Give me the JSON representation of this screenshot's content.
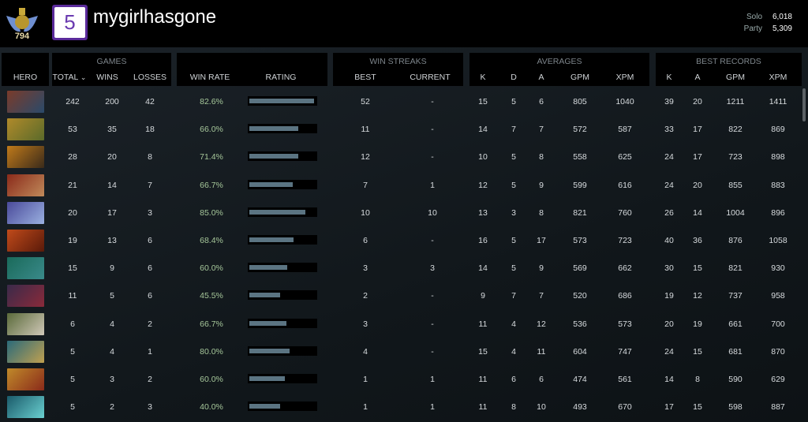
{
  "header": {
    "rank_number": "794",
    "player_name": "mygirlhasgone",
    "avatar_glyph": "5",
    "solo_label": "Solo",
    "solo_mmr": "6,018",
    "party_label": "Party",
    "party_mmr": "5,309"
  },
  "columns": {
    "hero": "HERO",
    "games": "GAMES",
    "total": "TOTAL",
    "sort_icon": "⌄",
    "wins": "WINS",
    "losses": "LOSSES",
    "win_rate": "WIN RATE",
    "rating": "RATING",
    "win_streaks": "WIN STREAKS",
    "best": "BEST",
    "current": "CURRENT",
    "averages": "AVERAGES",
    "k": "K",
    "d": "D",
    "a": "A",
    "gpm": "GPM",
    "xpm": "XPM",
    "best_records": "BEST RECORDS",
    "bk": "K",
    "ba": "A",
    "bgpm": "GPM",
    "bxpm": "XPM"
  },
  "rows": [
    {
      "total": "242",
      "wins": "200",
      "losses": "42",
      "win_rate": "82.6%",
      "rating": 0.98,
      "best": "52",
      "current": "-",
      "k": "15",
      "d": "5",
      "a": "6",
      "gpm": "805",
      "xpm": "1040",
      "bk": "39",
      "ba": "20",
      "bgpm": "1211",
      "bxpm": "1411",
      "c1": "#7a3b2a",
      "c2": "#2a4a6a"
    },
    {
      "total": "53",
      "wins": "35",
      "losses": "18",
      "win_rate": "66.0%",
      "rating": 0.74,
      "best": "11",
      "current": "-",
      "k": "14",
      "d": "7",
      "a": "7",
      "gpm": "572",
      "xpm": "587",
      "bk": "33",
      "ba": "17",
      "bgpm": "822",
      "bxpm": "869",
      "c1": "#b08a2a",
      "c2": "#5a6a2a"
    },
    {
      "total": "28",
      "wins": "20",
      "losses": "8",
      "win_rate": "71.4%",
      "rating": 0.74,
      "best": "12",
      "current": "-",
      "k": "10",
      "d": "5",
      "a": "8",
      "gpm": "558",
      "xpm": "625",
      "bk": "24",
      "ba": "17",
      "bgpm": "723",
      "bxpm": "898",
      "c1": "#c07a1a",
      "c2": "#3a2a1a"
    },
    {
      "total": "21",
      "wins": "14",
      "losses": "7",
      "win_rate": "66.7%",
      "rating": 0.65,
      "best": "7",
      "current": "1",
      "k": "12",
      "d": "5",
      "a": "9",
      "gpm": "599",
      "xpm": "616",
      "bk": "24",
      "ba": "20",
      "bgpm": "855",
      "bxpm": "883",
      "c1": "#8a2a1a",
      "c2": "#c08a5a"
    },
    {
      "total": "20",
      "wins": "17",
      "losses": "3",
      "win_rate": "85.0%",
      "rating": 0.84,
      "best": "10",
      "current": "10",
      "k": "13",
      "d": "3",
      "a": "8",
      "gpm": "821",
      "xpm": "760",
      "bk": "26",
      "ba": "14",
      "bgpm": "1004",
      "bxpm": "896",
      "c1": "#4a4a9a",
      "c2": "#9ab0e0"
    },
    {
      "total": "19",
      "wins": "13",
      "losses": "6",
      "win_rate": "68.4%",
      "rating": 0.67,
      "best": "6",
      "current": "-",
      "k": "16",
      "d": "5",
      "a": "17",
      "gpm": "573",
      "xpm": "723",
      "bk": "40",
      "ba": "36",
      "bgpm": "876",
      "bxpm": "1058",
      "c1": "#c04a1a",
      "c2": "#5a1a0a"
    },
    {
      "total": "15",
      "wins": "9",
      "losses": "6",
      "win_rate": "60.0%",
      "rating": 0.57,
      "best": "3",
      "current": "3",
      "k": "14",
      "d": "5",
      "a": "9",
      "gpm": "569",
      "xpm": "662",
      "bk": "30",
      "ba": "15",
      "bgpm": "821",
      "bxpm": "930",
      "c1": "#1a6a5a",
      "c2": "#3a8a8a"
    },
    {
      "total": "11",
      "wins": "5",
      "losses": "6",
      "win_rate": "45.5%",
      "rating": 0.47,
      "best": "2",
      "current": "-",
      "k": "9",
      "d": "7",
      "a": "7",
      "gpm": "520",
      "xpm": "686",
      "bk": "19",
      "ba": "12",
      "bgpm": "737",
      "bxpm": "958",
      "c1": "#3a2a4a",
      "c2": "#8a2a3a"
    },
    {
      "total": "6",
      "wins": "4",
      "losses": "2",
      "win_rate": "66.7%",
      "rating": 0.56,
      "best": "3",
      "current": "-",
      "k": "11",
      "d": "4",
      "a": "12",
      "gpm": "536",
      "xpm": "573",
      "bk": "20",
      "ba": "19",
      "bgpm": "661",
      "bxpm": "700",
      "c1": "#5a6a3a",
      "c2": "#d0c8b8"
    },
    {
      "total": "5",
      "wins": "4",
      "losses": "1",
      "win_rate": "80.0%",
      "rating": 0.61,
      "best": "4",
      "current": "-",
      "k": "15",
      "d": "4",
      "a": "11",
      "gpm": "604",
      "xpm": "747",
      "bk": "24",
      "ba": "15",
      "bgpm": "681",
      "bxpm": "870",
      "c1": "#2a6a7a",
      "c2": "#c0a050"
    },
    {
      "total": "5",
      "wins": "3",
      "losses": "2",
      "win_rate": "60.0%",
      "rating": 0.53,
      "best": "1",
      "current": "1",
      "k": "11",
      "d": "6",
      "a": "6",
      "gpm": "474",
      "xpm": "561",
      "bk": "14",
      "ba": "8",
      "bgpm": "590",
      "bxpm": "629",
      "c1": "#c08a2a",
      "c2": "#8a2a1a"
    },
    {
      "total": "5",
      "wins": "2",
      "losses": "3",
      "win_rate": "40.0%",
      "rating": 0.46,
      "best": "1",
      "current": "1",
      "k": "11",
      "d": "8",
      "a": "10",
      "gpm": "493",
      "xpm": "670",
      "bk": "17",
      "ba": "15",
      "bgpm": "598",
      "bxpm": "887",
      "c1": "#1a5a6a",
      "c2": "#6ad0d0"
    }
  ]
}
